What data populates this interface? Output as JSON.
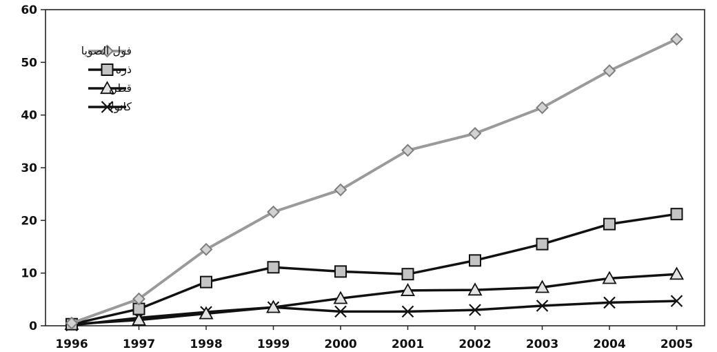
{
  "chart_data": {
    "type": "line",
    "x": [
      "1996",
      "1997",
      "1998",
      "1999",
      "2000",
      "2001",
      "2002",
      "2003",
      "2004",
      "2005"
    ],
    "ylim": [
      0,
      60
    ],
    "yticks": [
      "0",
      "10",
      "20",
      "30",
      "40",
      "50",
      "60"
    ],
    "grid": false,
    "legend_position": "top-left",
    "series": [
      {
        "name": "فول الصويا",
        "marker": "diamond",
        "color": "#9a9a9a",
        "values": [
          0.5,
          5.1,
          14.5,
          21.6,
          25.8,
          33.3,
          36.5,
          41.4,
          48.4,
          54.4
        ]
      },
      {
        "name": "ذره",
        "marker": "square",
        "color": "#111111",
        "values": [
          0.3,
          3.2,
          8.3,
          11.1,
          10.3,
          9.8,
          12.4,
          15.5,
          19.3,
          21.2
        ]
      },
      {
        "name": "قطن",
        "marker": "triangle",
        "color": "#111111",
        "values": [
          0.3,
          1.1,
          2.3,
          3.5,
          5.2,
          6.7,
          6.8,
          7.3,
          9.0,
          9.8
        ]
      },
      {
        "name": "كانولا",
        "marker": "x",
        "color": "#111111",
        "values": [
          0.1,
          1.5,
          2.6,
          3.5,
          2.7,
          2.7,
          3.0,
          3.8,
          4.4,
          4.7
        ]
      }
    ]
  }
}
